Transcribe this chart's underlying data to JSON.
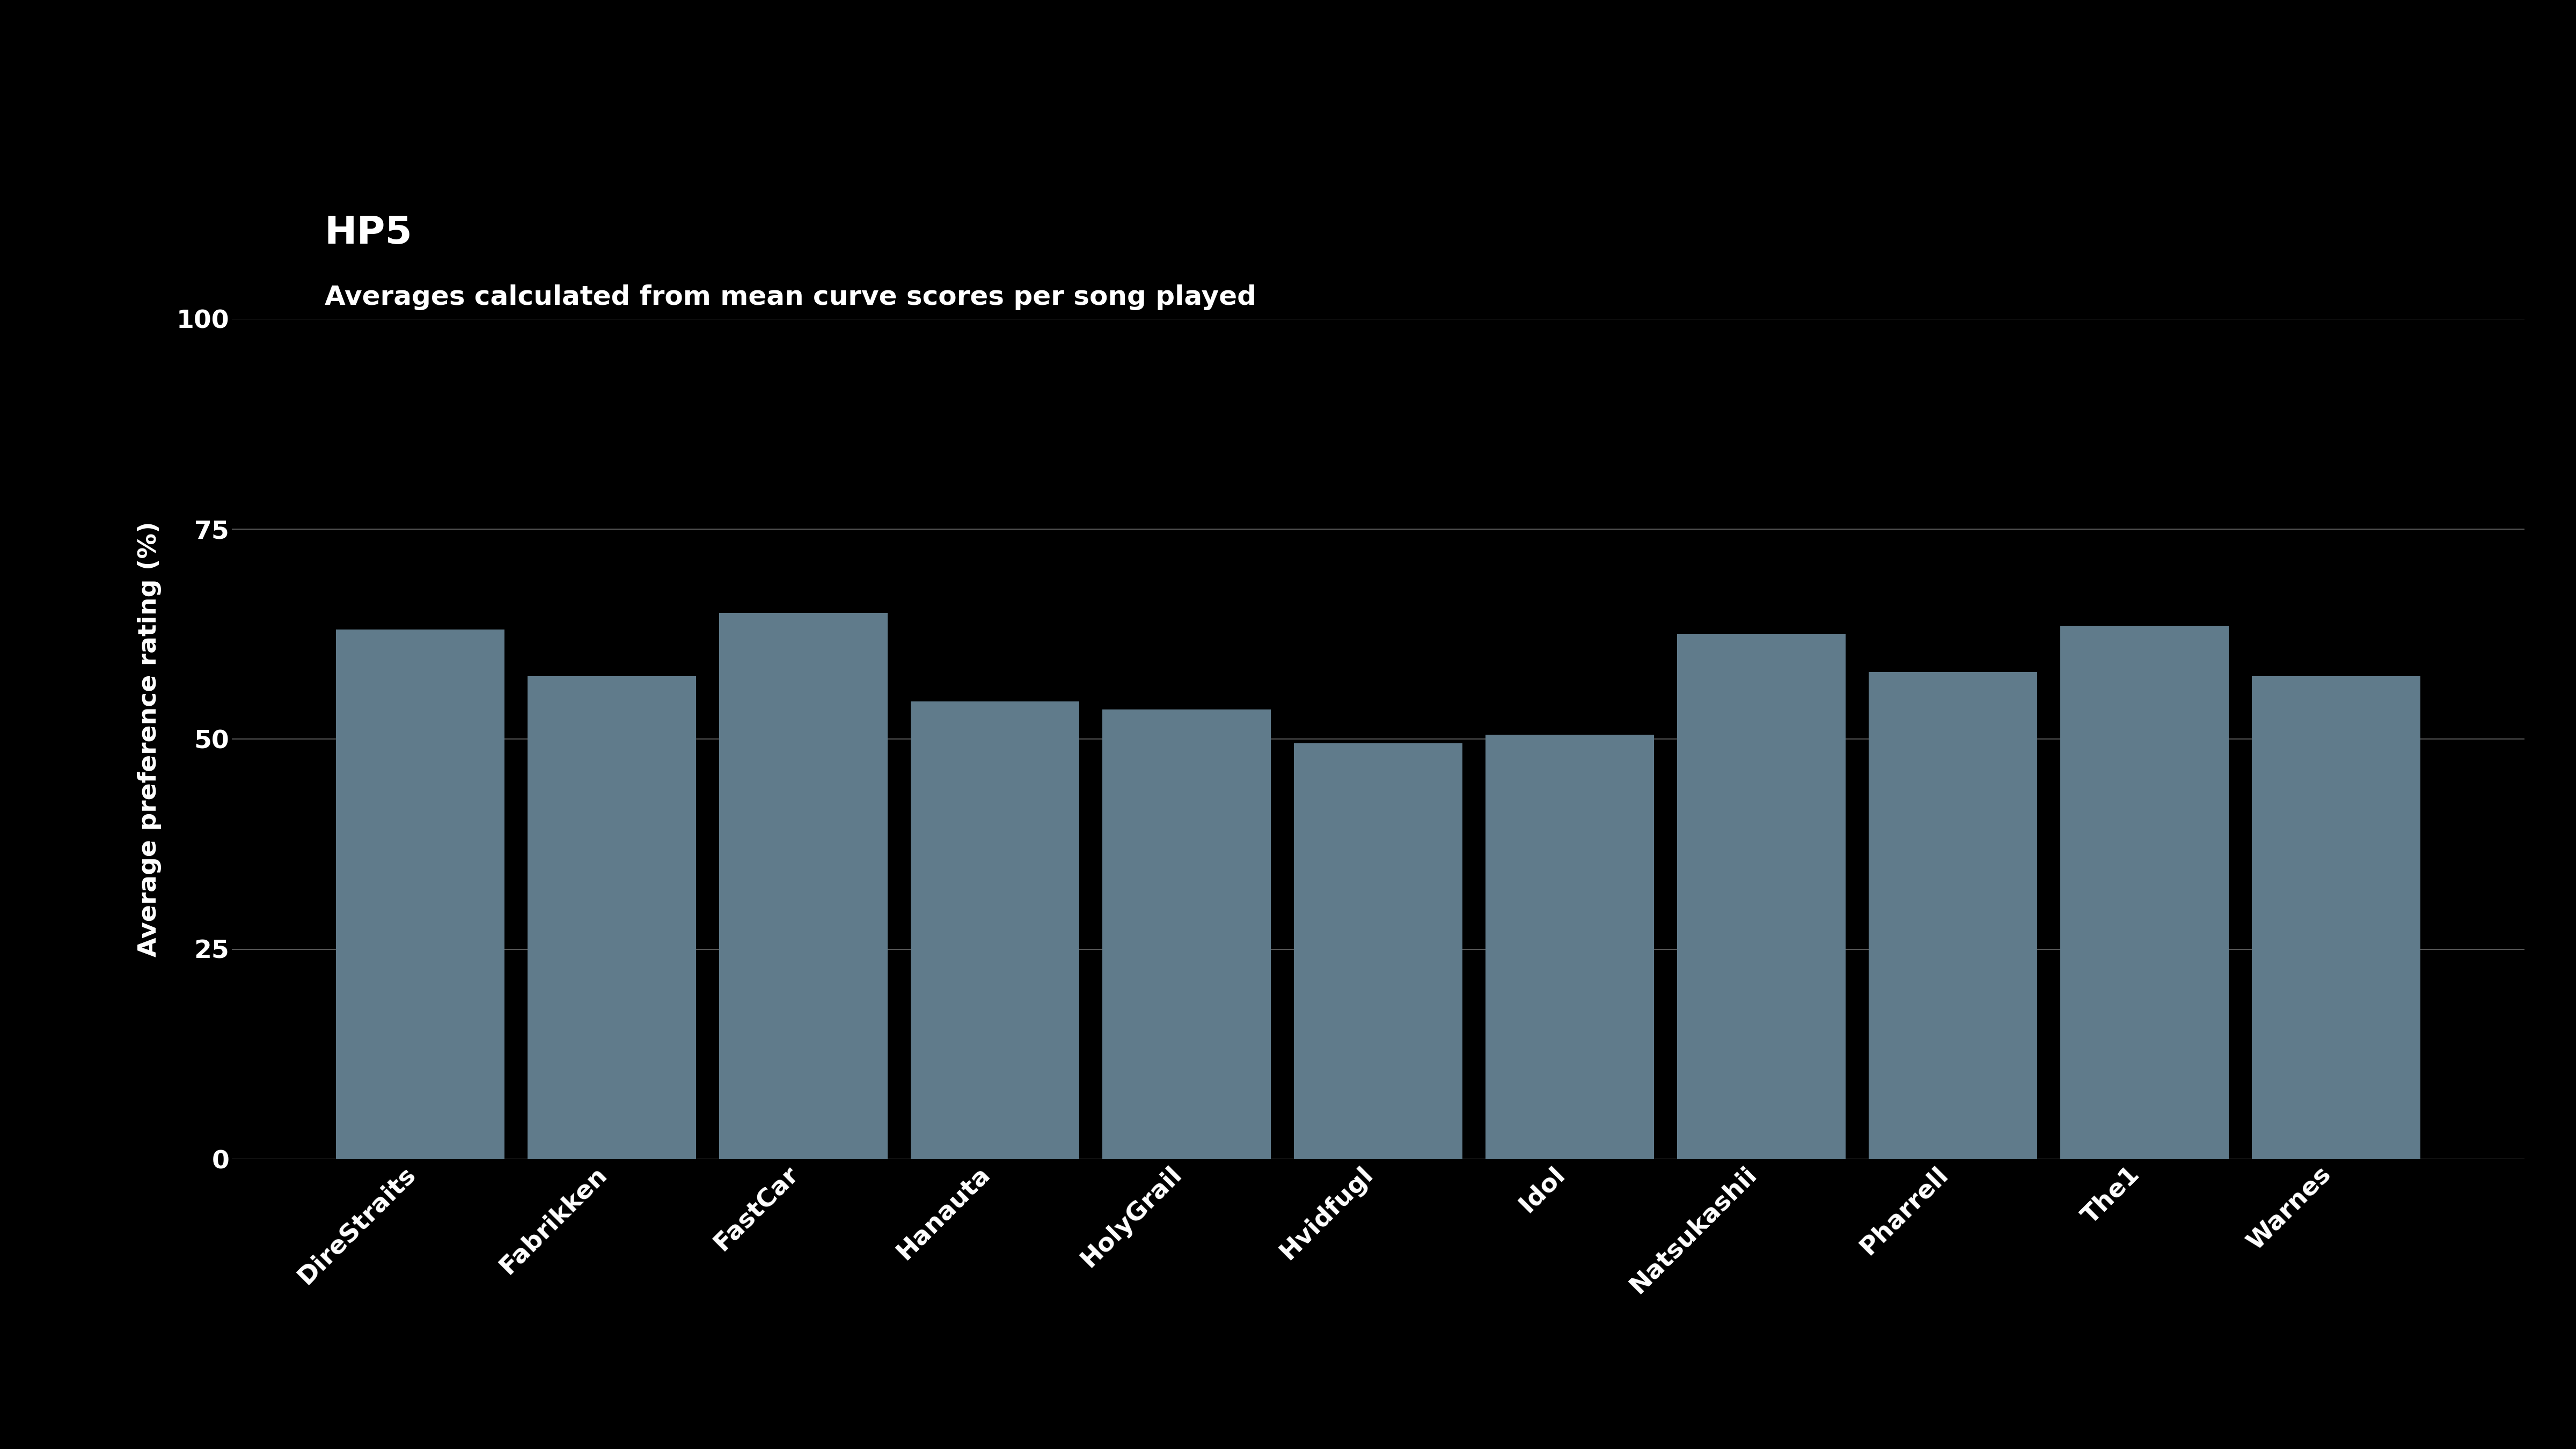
{
  "title": "HP5",
  "subtitle": "Averages calculated from mean curve scores per song played",
  "categories": [
    "DireStraits",
    "Fabrikken",
    "FastCar",
    "Hanauta",
    "HolyGrail",
    "Hvidfugl",
    "Idol",
    "Natsukashii",
    "Pharrell",
    "The1",
    "Warnes"
  ],
  "values": [
    63.0,
    57.5,
    65.0,
    54.5,
    53.5,
    49.5,
    50.5,
    62.5,
    58.0,
    63.5,
    57.5
  ],
  "bar_color": "#607B8B",
  "background_color": "#000000",
  "text_color": "#ffffff",
  "ylabel": "Average preference rating (%)",
  "ylim": [
    0,
    100
  ],
  "yticks": [
    0,
    25,
    50,
    75,
    100
  ],
  "title_fontsize": 52,
  "subtitle_fontsize": 36,
  "axis_label_fontsize": 34,
  "tick_fontsize": 34,
  "grid_color": "#555555",
  "bar_gap": 0.12
}
